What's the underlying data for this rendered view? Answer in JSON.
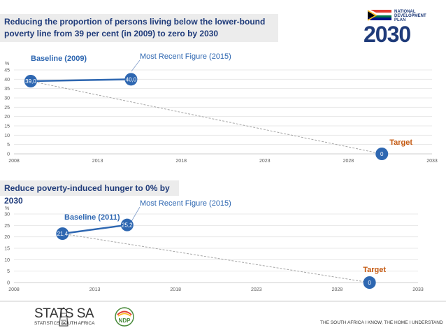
{
  "header": {
    "chart1_title": "Reducing the proportion of persons living below the lower-bound poverty line from 39 per cent (in 2009) to zero by 2030",
    "chart2_title": "Reduce poverty-induced hunger to 0% by 2030"
  },
  "logo": {
    "line1": "NATIONAL",
    "line2": "DEVELOPMENT",
    "line3": "PLAN",
    "year": "2030"
  },
  "footer": {
    "stats_name": "STATS SA",
    "stats_sub": "STATISTICS SOUTH AFRICA",
    "ndp_badge": "NDP",
    "tagline": "THE SOUTH AFRICA I KNOW, THE HOME I UNDERSTAND"
  },
  "colors": {
    "accent": "#2e67b1",
    "title_text": "#1f3b7a",
    "banner_bg": "#ececec",
    "target_text": "#c55a11",
    "baseline_text": "#2e67b1",
    "recent_text": "#2e67b1"
  },
  "chart_data": [
    {
      "type": "line",
      "title": "Reducing the proportion of persons living below the lower-bound poverty line from 39 per cent (in 2009) to zero by 2030",
      "ylabel": "%",
      "xlim": [
        2008,
        2033
      ],
      "ylim": [
        0,
        45
      ],
      "xticks": [
        "2008",
        "2013",
        "2018",
        "2023",
        "2028",
        "2033"
      ],
      "yticks": [
        "0",
        "5",
        "10",
        "15",
        "20",
        "25",
        "30",
        "35",
        "40",
        "45"
      ],
      "grid": true,
      "series": [
        {
          "x": [
            2009,
            2015
          ],
          "values": [
            39.0,
            40.0
          ],
          "labels": [
            "39,0",
            "40,0"
          ],
          "style": "solid"
        },
        {
          "x": [
            2009,
            2030
          ],
          "values": [
            39.0,
            0
          ],
          "style": "dashed"
        }
      ],
      "points": [
        {
          "x": 2030,
          "y": 0,
          "label": "0"
        }
      ],
      "annotations": [
        {
          "text": "Baseline (2009)",
          "role": "baseline"
        },
        {
          "text": "Most Recent Figure (2015)",
          "role": "recent"
        },
        {
          "text": "Target",
          "role": "target"
        }
      ]
    },
    {
      "type": "line",
      "title": "Reduce poverty-induced hunger to 0% by 2030",
      "ylabel": "%",
      "xlim": [
        2008,
        2033
      ],
      "ylim": [
        0,
        30
      ],
      "xticks": [
        "2008",
        "2013",
        "2018",
        "2023",
        "2028",
        "2033"
      ],
      "yticks": [
        "0",
        "5",
        "10",
        "15",
        "20",
        "25",
        "30"
      ],
      "grid": true,
      "series": [
        {
          "x": [
            2011,
            2015
          ],
          "values": [
            21.4,
            25.2
          ],
          "labels": [
            "21,4",
            "25,2"
          ],
          "style": "solid"
        },
        {
          "x": [
            2011,
            2030
          ],
          "values": [
            21.4,
            0
          ],
          "style": "dashed"
        }
      ],
      "points": [
        {
          "x": 2030,
          "y": 0,
          "label": "0"
        }
      ],
      "annotations": [
        {
          "text": "Baseline (2011)",
          "role": "baseline"
        },
        {
          "text": "Most Recent Figure (2015)",
          "role": "recent"
        },
        {
          "text": "Target",
          "role": "target"
        }
      ]
    }
  ]
}
